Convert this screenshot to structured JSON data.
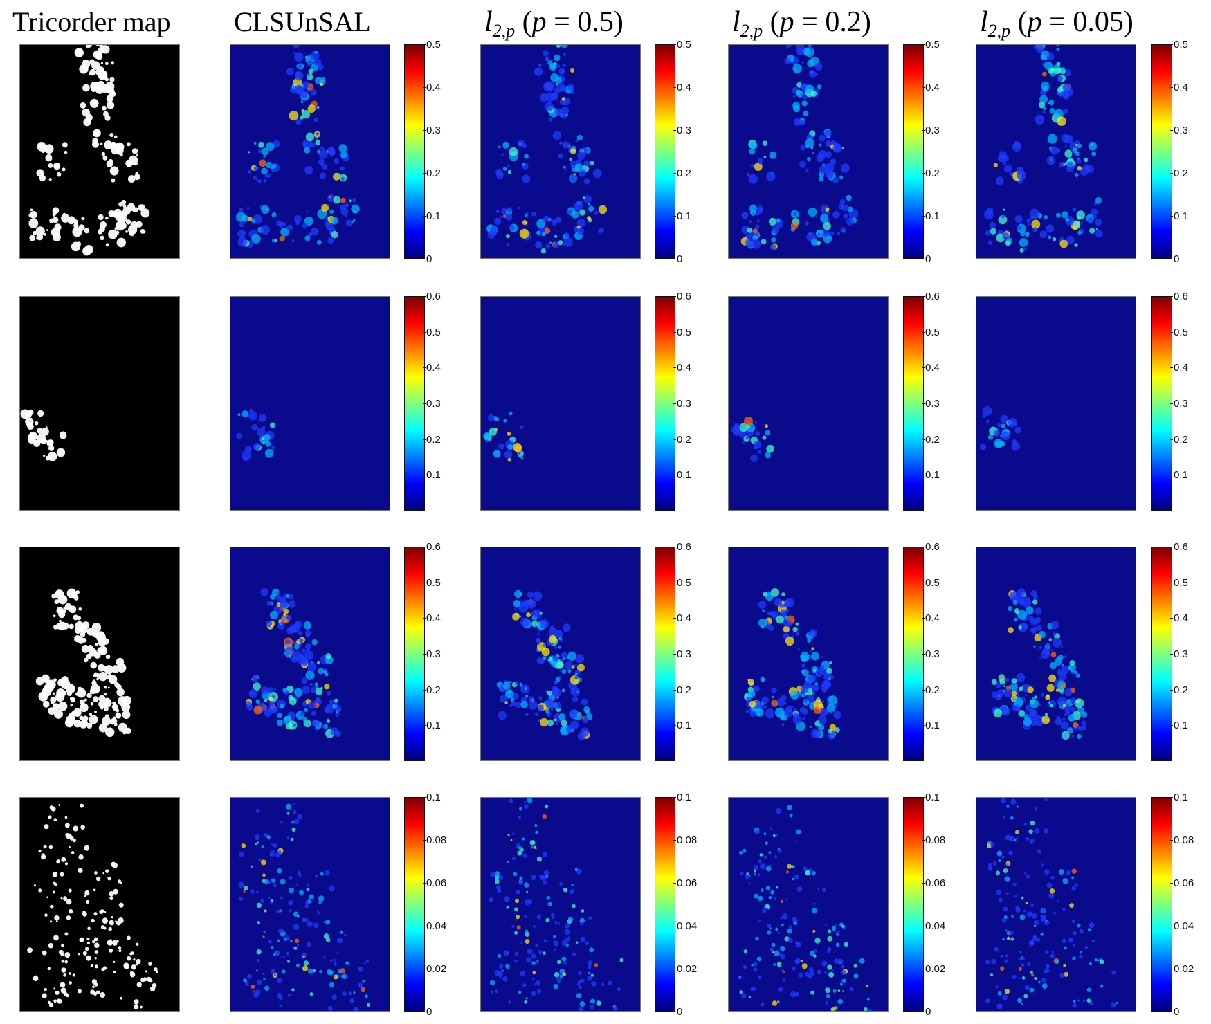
{
  "figure": {
    "column_titles": [
      {
        "text": "Tricorder map"
      },
      {
        "text": "CLSUnSAL"
      },
      {
        "var": "l",
        "sub": "2,p",
        "open": " (",
        "pvar": "p",
        "eq": " = 0.5)"
      },
      {
        "var": "l",
        "sub": "2,p",
        "open": " (",
        "pvar": "p",
        "eq": " = 0.2)"
      },
      {
        "var": "l",
        "sub": "2,p",
        "open": " (",
        "pvar": "p",
        "eq": " = 0.05)"
      }
    ],
    "colormap": [
      "#00007f",
      "#0000ff",
      "#007fff",
      "#00ffff",
      "#7fff7f",
      "#ffff00",
      "#ff7f00",
      "#ff0000",
      "#7f0000"
    ],
    "background_blue": "#0a0a8c",
    "rows": [
      {
        "ticks": [
          "0.5",
          "0.4",
          "0.3",
          "0.2",
          "0.1",
          "0"
        ]
      },
      {
        "ticks": [
          "0.6",
          "0.5",
          "0.4",
          "0.3",
          "0.2",
          "0.1"
        ]
      },
      {
        "ticks": [
          "0.6",
          "0.5",
          "0.4",
          "0.3",
          "0.2",
          "0.1"
        ]
      },
      {
        "ticks": [
          "0.1",
          "0.08",
          "0.06",
          "0.04",
          "0.02",
          "0"
        ]
      }
    ]
  }
}
